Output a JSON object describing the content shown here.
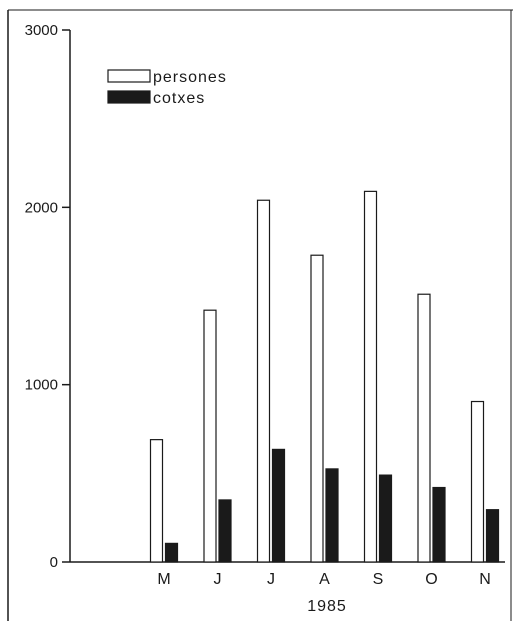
{
  "chart_data": {
    "type": "bar",
    "title": "",
    "xlabel": "1985",
    "ylabel": "",
    "ylim": [
      0,
      3000
    ],
    "yticks": [
      0,
      1000,
      2000,
      3000
    ],
    "categories": [
      "M",
      "J",
      "J",
      "A",
      "S",
      "O",
      "N"
    ],
    "series": [
      {
        "name": "persones",
        "values": [
          690,
          1420,
          2040,
          1730,
          2090,
          1510,
          905
        ],
        "fill": "#ffffff",
        "stroke": "#1a1a1a"
      },
      {
        "name": "cotxes",
        "values": [
          105,
          350,
          635,
          525,
          490,
          420,
          295
        ],
        "fill": "#1a1a1a",
        "stroke": "#1a1a1a"
      }
    ],
    "legend_position": "top-left",
    "grid": false
  }
}
